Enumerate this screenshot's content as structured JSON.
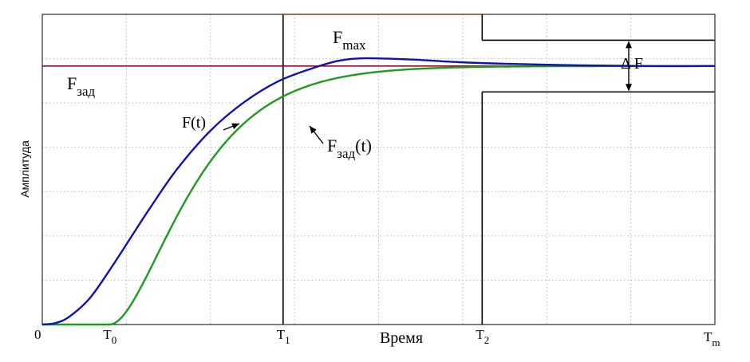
{
  "chart_data": {
    "type": "line",
    "ylabel": "Амплитуда",
    "xlabel": "Время",
    "xlim": [
      0,
      1
    ],
    "ylim": [
      0,
      1.2
    ],
    "grid": true,
    "grid_style": "dotted",
    "x_ticks": [
      {
        "x": 0.0,
        "main": "0",
        "sub": ""
      },
      {
        "x": 0.1,
        "main": "T",
        "sub": "0"
      },
      {
        "x": 0.358,
        "main": "T",
        "sub": "1"
      },
      {
        "x": 0.654,
        "main": "T",
        "sub": "2"
      },
      {
        "x": 1.0,
        "main": "T",
        "sub": "m"
      }
    ],
    "reference": {
      "name_main": "F",
      "name_sub": "зад",
      "value": 1.0,
      "color": "#a50021"
    },
    "curve_F": {
      "label": "F(t)",
      "color": "#1111b0",
      "overshoot_peak": 1.03,
      "peak_x": 0.48
    },
    "curve_Fzad": {
      "label_main": "F",
      "label_sub": "зад",
      "label_suffix": "(t)",
      "color": "#1e9a1e",
      "start_x": 0.1
    },
    "corridor": {
      "color": "#000000",
      "T1": 0.358,
      "T2": 0.654,
      "Fmax": 1.2,
      "upper": 1.1,
      "lower": 0.9,
      "fmax_label_main": "F",
      "fmax_label_sub": "max",
      "fmax_upper_color": "#8b3a1a",
      "delta_label": "Δ F"
    }
  }
}
